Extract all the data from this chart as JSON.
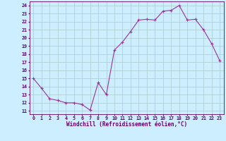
{
  "x": [
    0,
    1,
    2,
    3,
    4,
    5,
    6,
    7,
    8,
    9,
    10,
    11,
    12,
    13,
    14,
    15,
    16,
    17,
    18,
    19,
    20,
    21,
    22,
    23
  ],
  "y": [
    15,
    13.8,
    12.5,
    12.3,
    12.0,
    12.0,
    11.8,
    11.1,
    14.5,
    13.0,
    18.5,
    19.5,
    20.8,
    22.2,
    22.3,
    22.2,
    23.3,
    23.4,
    24.0,
    22.2,
    22.3,
    21.0,
    19.3,
    17.2
  ],
  "line_color": "#993399",
  "bg_color": "#cceeff",
  "grid_color": "#aacccc",
  "xlabel": "Windchill (Refroidissement éolien,°C)",
  "ylabel_ticks": [
    11,
    12,
    13,
    14,
    15,
    16,
    17,
    18,
    19,
    20,
    21,
    22,
    23,
    24
  ],
  "xlim": [
    -0.5,
    23.5
  ],
  "ylim": [
    10.6,
    24.5
  ],
  "tick_color": "#660066",
  "font_name": "monospace",
  "xlabel_fontsize": 5.5,
  "tick_fontsize": 4.8
}
